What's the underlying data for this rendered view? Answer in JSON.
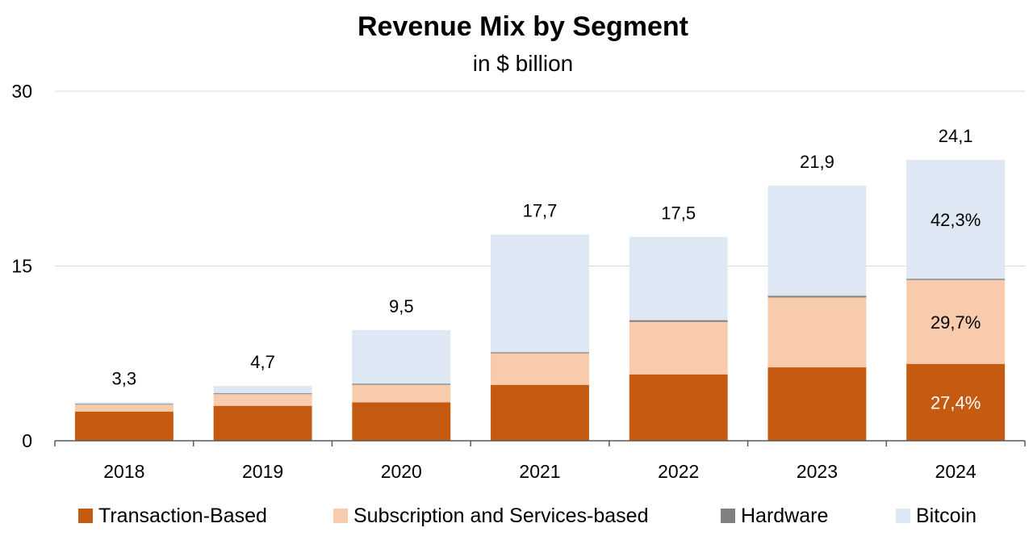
{
  "chart_data": {
    "type": "bar",
    "stacked": true,
    "title": "Revenue Mix by Segment",
    "subtitle": "in $ billion",
    "xlabel": "",
    "ylabel": "",
    "ylim": [
      0,
      30
    ],
    "yticks": [
      "0",
      "15",
      "30"
    ],
    "grid": true,
    "legend_position": "bottom",
    "categories": [
      "2018",
      "2019",
      "2020",
      "2021",
      "2022",
      "2023",
      "2024"
    ],
    "totals": [
      "3,3",
      "4,7",
      "9,5",
      "17,7",
      "17,5",
      "21,9",
      "24,1"
    ],
    "series": [
      {
        "name": "Transaction-Based",
        "color": "#C55A11",
        "values": [
          2.5,
          3.0,
          3.3,
          4.8,
          5.7,
          6.3,
          6.6
        ]
      },
      {
        "name": "Subscription and Services-based",
        "color": "#F8CBAD",
        "values": [
          0.6,
          1.0,
          1.5,
          2.7,
          4.5,
          6.0,
          7.2
        ]
      },
      {
        "name": "Hardware",
        "color": "#808080",
        "values": [
          0.07,
          0.08,
          0.1,
          0.1,
          0.15,
          0.15,
          0.1
        ]
      },
      {
        "name": "Bitcoin",
        "color": "#DDE8F4",
        "values": [
          0.13,
          0.62,
          4.6,
          10.1,
          7.15,
          9.45,
          10.2
        ]
      }
    ],
    "annotations": [
      {
        "category": "2024",
        "series": "Bitcoin",
        "text": "42,3%"
      },
      {
        "category": "2024",
        "series": "Subscription and Services-based",
        "text": "29,7%"
      },
      {
        "category": "2024",
        "series": "Transaction-Based",
        "text": "27,4%"
      }
    ]
  }
}
